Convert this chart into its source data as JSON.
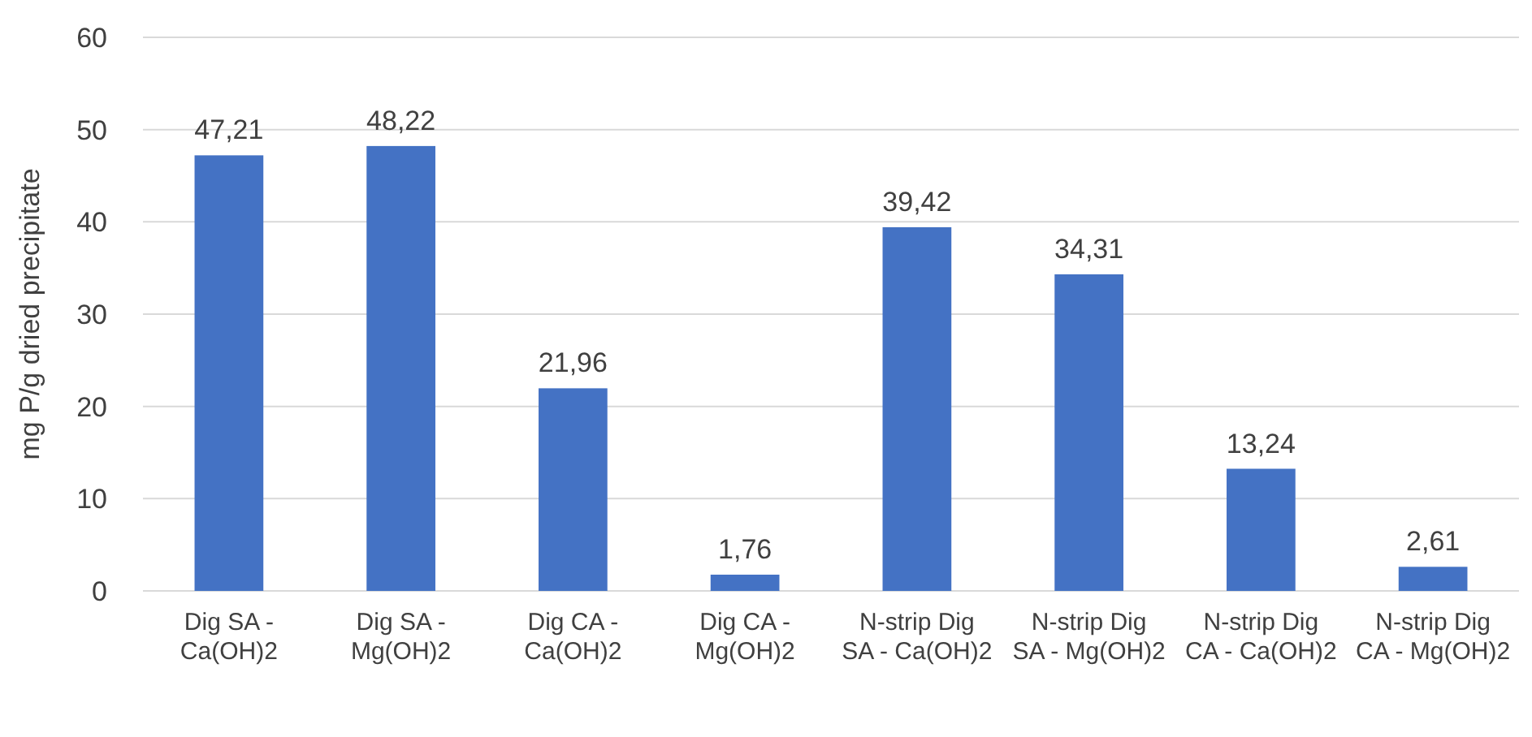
{
  "chart_data": {
    "type": "bar",
    "ylabel": "mg P/g dried precipitate",
    "categories": [
      "Dig SA - Ca(OH)2",
      "Dig SA - Mg(OH)2",
      "Dig CA - Ca(OH)2",
      "Dig CA - Mg(OH)2",
      "N-strip Dig SA - Ca(OH)2",
      "N-strip Dig SA - Mg(OH)2",
      "N-strip Dig CA - Ca(OH)2",
      "N-strip Dig CA - Mg(OH)2"
    ],
    "values": [
      47.21,
      48.22,
      21.96,
      1.76,
      39.42,
      34.31,
      13.24,
      2.61
    ],
    "value_labels": [
      "47,21",
      "48,22",
      "21,96",
      "1,76",
      "39,42",
      "34,31",
      "13,24",
      "2,61"
    ],
    "color": "#4472c4",
    "ylim": [
      0,
      60
    ],
    "yticks": [
      0,
      10,
      20,
      30,
      40,
      50,
      60
    ],
    "grid": "y"
  }
}
